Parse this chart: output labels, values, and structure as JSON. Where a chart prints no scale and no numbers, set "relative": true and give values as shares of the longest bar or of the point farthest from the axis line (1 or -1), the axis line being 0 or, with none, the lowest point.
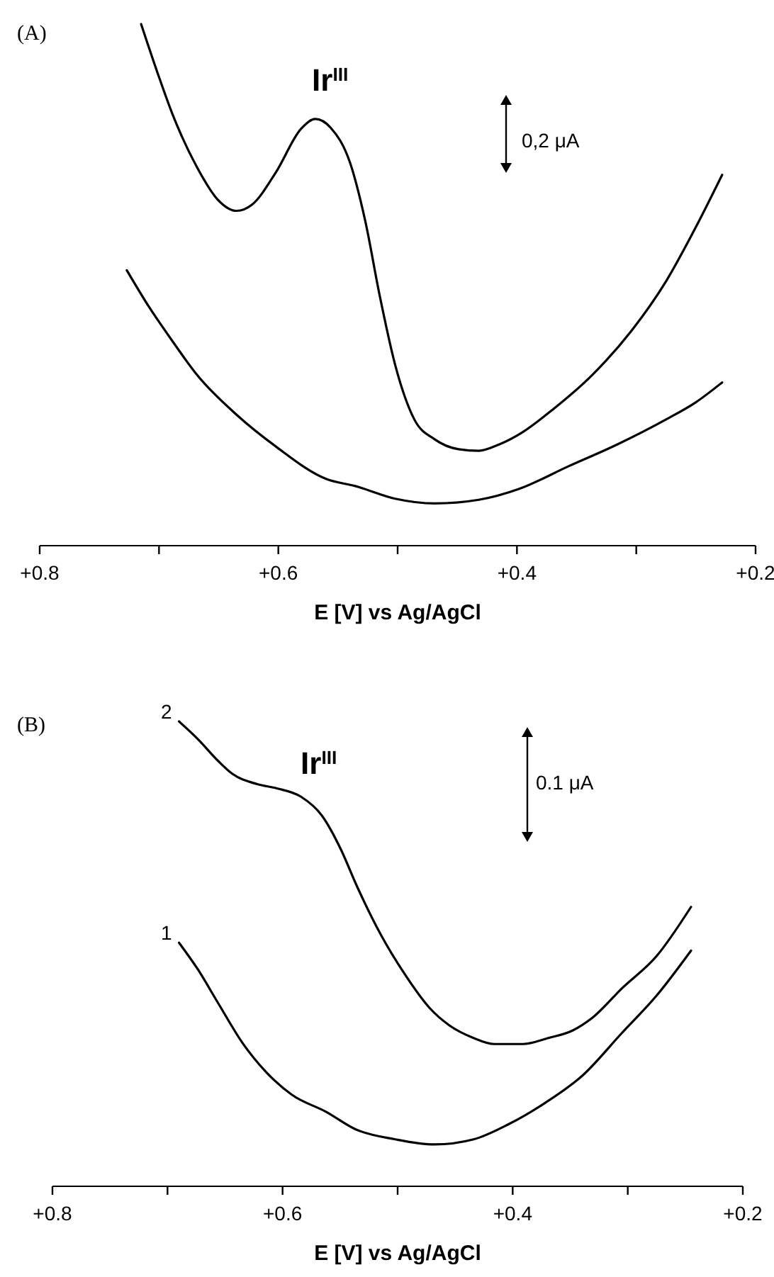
{
  "chart_data": [
    {
      "type": "line",
      "relative": true,
      "xlabel": "E [V] vs Ag/AgCl",
      "xlim": [
        0.8,
        0.2
      ],
      "xticks": [
        {
          "value": 0.8,
          "label": "+0.8"
        },
        {
          "value": 0.7,
          "label": null
        },
        {
          "value": 0.6,
          "label": "+0.6"
        },
        {
          "value": 0.5,
          "label": null
        },
        {
          "value": 0.4,
          "label": "+0.4"
        },
        {
          "value": 0.3,
          "label": null
        },
        {
          "value": 0.2,
          "label": "+0.2"
        }
      ],
      "annotations": [
        "(A)",
        "Ir$^{III}$",
        "0,2 μA"
      ],
      "series": [
        {
          "color": "#000000",
          "x": [
            0.715,
            0.701,
            0.689,
            0.668,
            0.651,
            0.635,
            0.622,
            0.602,
            0.581,
            0.569,
            0.556,
            0.54,
            0.527,
            0.515,
            0.502,
            0.486,
            0.469,
            0.449,
            0.432,
            0.415,
            0.395,
            0.37,
            0.337,
            0.304,
            0.275,
            0.25,
            0.228
          ],
          "values": [
            1.0,
            0.905,
            0.829,
            0.725,
            0.664,
            0.642,
            0.654,
            0.716,
            0.799,
            0.818,
            0.801,
            0.735,
            0.621,
            0.479,
            0.346,
            0.242,
            0.204,
            0.185,
            0.182,
            0.194,
            0.218,
            0.261,
            0.327,
            0.412,
            0.507,
            0.611,
            0.711
          ]
        },
        {
          "color": "#000000",
          "x": [
            0.727,
            0.709,
            0.689,
            0.668,
            0.635,
            0.602,
            0.56,
            0.535,
            0.502,
            0.469,
            0.432,
            0.398,
            0.357,
            0.316,
            0.275,
            0.25,
            0.228
          ],
          "values": [
            0.528,
            0.46,
            0.393,
            0.327,
            0.251,
            0.19,
            0.128,
            0.114,
            0.09,
            0.081,
            0.088,
            0.109,
            0.152,
            0.194,
            0.242,
            0.275,
            0.313
          ]
        }
      ]
    },
    {
      "type": "line",
      "relative": true,
      "xlabel": "E [V] vs Ag/AgCl",
      "xlim": [
        0.8,
        0.2
      ],
      "xticks": [
        {
          "value": 0.8,
          "label": "+0.8"
        },
        {
          "value": 0.7,
          "label": null
        },
        {
          "value": 0.6,
          "label": "+0.6"
        },
        {
          "value": 0.5,
          "label": null
        },
        {
          "value": 0.4,
          "label": "+0.4"
        },
        {
          "value": 0.3,
          "label": null
        },
        {
          "value": 0.2,
          "label": "+0.2"
        }
      ],
      "annotations": [
        "(B)",
        "Ir$^{III}$",
        "0.1 μA"
      ],
      "series": [
        {
          "name": "2",
          "color": "#000000",
          "x": [
            0.69,
            0.674,
            0.656,
            0.644,
            0.622,
            0.605,
            0.584,
            0.566,
            0.549,
            0.536,
            0.515,
            0.494,
            0.472,
            0.455,
            0.434,
            0.416,
            0.391,
            0.369,
            0.348,
            0.331,
            0.305,
            0.275,
            0.245
          ],
          "values": [
            1.0,
            0.963,
            0.915,
            0.888,
            0.865,
            0.856,
            0.838,
            0.798,
            0.723,
            0.649,
            0.543,
            0.457,
            0.383,
            0.346,
            0.319,
            0.306,
            0.306,
            0.319,
            0.335,
            0.362,
            0.426,
            0.495,
            0.601
          ]
        },
        {
          "name": "1",
          "color": "#000000",
          "x": [
            0.69,
            0.674,
            0.656,
            0.635,
            0.614,
            0.592,
            0.562,
            0.536,
            0.502,
            0.468,
            0.434,
            0.404,
            0.374,
            0.339,
            0.305,
            0.275,
            0.245
          ],
          "values": [
            0.524,
            0.468,
            0.394,
            0.309,
            0.245,
            0.197,
            0.16,
            0.122,
            0.101,
            0.09,
            0.101,
            0.133,
            0.176,
            0.239,
            0.33,
            0.41,
            0.507
          ]
        }
      ]
    }
  ]
}
